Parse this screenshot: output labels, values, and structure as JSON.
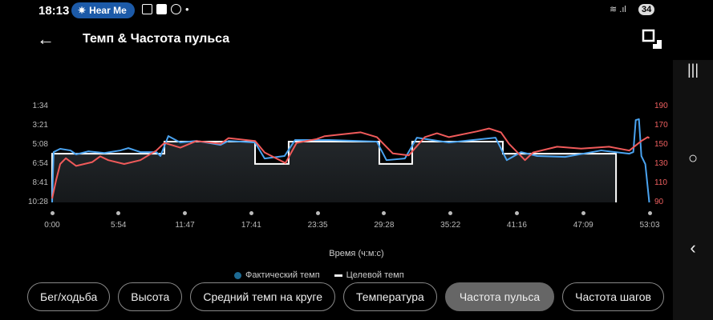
{
  "status_bar": {
    "time": "18:13",
    "pill_label": "Hear Me",
    "battery": "34"
  },
  "header": {
    "title": "Темп & Частота пульса"
  },
  "chart_data": {
    "type": "line",
    "xlabel": "Время (ч:м:с)",
    "x_ticks": [
      "0:00",
      "5:54",
      "11:47",
      "17:41",
      "23:35",
      "29:28",
      "35:22",
      "41:16",
      "47:09",
      "53:03"
    ],
    "xlim": [
      "0:00",
      "53:03"
    ],
    "y_left_ticks": [
      "1:34",
      "3:21",
      "5:08",
      "6:54",
      "8:41",
      "10:28"
    ],
    "y_left_lim": [
      "1:34",
      "10:28"
    ],
    "y_right_ticks": [
      "190",
      "170",
      "150",
      "130",
      "110",
      "90"
    ],
    "y_right_lim": [
      90,
      190
    ],
    "legend": [
      "Фактический темп",
      "Целевой темп"
    ],
    "legend_position": "bottom",
    "colors": {
      "actual_pace": "#4aa3f0",
      "heart_rate": "#f05a5a",
      "target_pace": "#ffffff",
      "legend_actual": "#1d6a93"
    },
    "series": [
      {
        "name": "Фактический темп",
        "axis": "left",
        "points": [
          [
            "0:00",
            "10:28"
          ],
          [
            "0:08",
            "5:48"
          ],
          [
            "0:43",
            "5:30"
          ],
          [
            "1:38",
            "5:39"
          ],
          [
            "2:08",
            "6:01"
          ],
          [
            "3:12",
            "5:44"
          ],
          [
            "4:38",
            "5:53"
          ],
          [
            "6:03",
            "5:39"
          ],
          [
            "6:46",
            "5:26"
          ],
          [
            "7:50",
            "5:48"
          ],
          [
            "9:15",
            "5:48"
          ],
          [
            "9:37",
            "6:10"
          ],
          [
            "10:19",
            "4:19"
          ],
          [
            "11:23",
            "4:55"
          ],
          [
            "12:49",
            "4:46"
          ],
          [
            "14:57",
            "5:08"
          ],
          [
            "15:40",
            "4:46"
          ],
          [
            "18:01",
            "4:55"
          ],
          [
            "18:52",
            "6:24"
          ],
          [
            "20:38",
            "6:10"
          ],
          [
            "21:34",
            "4:41"
          ],
          [
            "24:34",
            "4:41"
          ],
          [
            "28:50",
            "4:50"
          ],
          [
            "29:41",
            "6:33"
          ],
          [
            "31:19",
            "6:24"
          ],
          [
            "32:23",
            "4:28"
          ],
          [
            "35:14",
            "4:55"
          ],
          [
            "37:22",
            "4:41"
          ],
          [
            "39:22",
            "4:28"
          ],
          [
            "40:22",
            "6:33"
          ],
          [
            "41:38",
            "5:48"
          ],
          [
            "43:04",
            "6:10"
          ],
          [
            "45:33",
            "6:15"
          ],
          [
            "48:45",
            "5:39"
          ],
          [
            "51:15",
            "5:57"
          ],
          [
            "51:36",
            "5:48"
          ],
          [
            "51:49",
            "2:50"
          ],
          [
            "52:06",
            "2:45"
          ],
          [
            "52:19",
            "6:10"
          ],
          [
            "52:40",
            "6:55"
          ],
          [
            "53:01",
            "10:28"
          ]
        ]
      },
      {
        "name": "Целевой темп",
        "axis": "left",
        "steps": [
          [
            "0:00",
            "5:57"
          ],
          [
            "9:58",
            "4:50"
          ],
          [
            "18:01",
            "6:54"
          ],
          [
            "21:00",
            "4:50"
          ],
          [
            "29:03",
            "6:54"
          ],
          [
            "31:58",
            "4:50"
          ],
          [
            "40:01",
            "5:57"
          ]
        ],
        "end": "50:04"
      },
      {
        "axis": "right",
        "points": [
          [
            "0:00",
            94
          ],
          [
            "0:21",
            113
          ],
          [
            "0:43",
            130
          ],
          [
            "1:13",
            136
          ],
          [
            "2:08",
            128
          ],
          [
            "3:34",
            132
          ],
          [
            "4:16",
            138
          ],
          [
            "4:59",
            134
          ],
          [
            "6:24",
            130
          ],
          [
            "7:50",
            134
          ],
          [
            "9:15",
            144
          ],
          [
            "9:58",
            152
          ],
          [
            "11:23",
            147
          ],
          [
            "12:49",
            154
          ],
          [
            "14:57",
            151
          ],
          [
            "15:40",
            157
          ],
          [
            "18:01",
            154
          ],
          [
            "18:52",
            142
          ],
          [
            "20:43",
            131
          ],
          [
            "21:42",
            152
          ],
          [
            "23:29",
            156
          ],
          [
            "24:12",
            159
          ],
          [
            "27:24",
            163
          ],
          [
            "28:50",
            158
          ],
          [
            "30:15",
            141
          ],
          [
            "31:40",
            139
          ],
          [
            "33:05",
            158
          ],
          [
            "34:10",
            162
          ],
          [
            "35:14",
            158
          ],
          [
            "37:44",
            164
          ],
          [
            "38:47",
            167
          ],
          [
            "39:51",
            163
          ],
          [
            "40:34",
            151
          ],
          [
            "41:59",
            134
          ],
          [
            "42:42",
            142
          ],
          [
            "44:50",
            148
          ],
          [
            "46:58",
            146
          ],
          [
            "49:27",
            148
          ],
          [
            "51:15",
            144
          ],
          [
            "52:19",
            154
          ],
          [
            "52:53",
            158
          ],
          [
            "53:01",
            157
          ]
        ]
      }
    ]
  },
  "chips": [
    {
      "label": "Бег/ходьба",
      "active": false
    },
    {
      "label": "Высота",
      "active": false
    },
    {
      "label": "Средний темп на круге",
      "active": false
    },
    {
      "label": "Температура",
      "active": false
    },
    {
      "label": "Частота пульса",
      "active": true
    },
    {
      "label": "Частота шагов",
      "active": false
    }
  ]
}
